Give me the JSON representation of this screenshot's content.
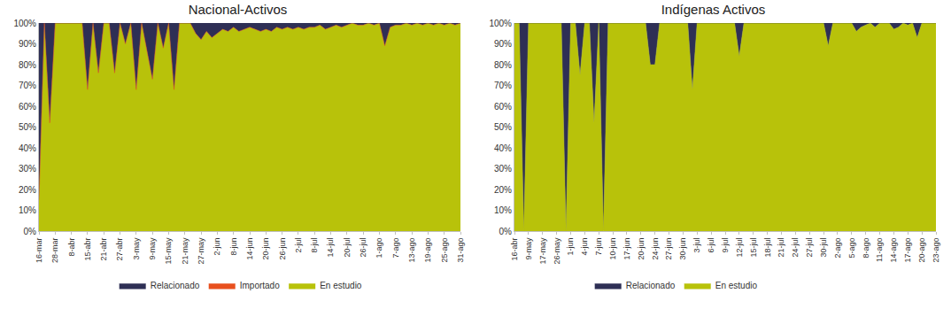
{
  "chart_data": [
    {
      "type": "area",
      "title": "Nacional-Activos",
      "stacked": true,
      "grid": false,
      "legend": "bottom",
      "ylim": [
        0,
        100
      ],
      "yticks": [
        {
          "value": 0,
          "label": "0%"
        },
        {
          "value": 10,
          "label": "10%"
        },
        {
          "value": 20,
          "label": "20%"
        },
        {
          "value": 30,
          "label": "30%"
        },
        {
          "value": 40,
          "label": "40%"
        },
        {
          "value": 50,
          "label": "50%"
        },
        {
          "value": 60,
          "label": "60%"
        },
        {
          "value": 70,
          "label": "70%"
        },
        {
          "value": 80,
          "label": "80%"
        },
        {
          "value": 90,
          "label": "90%"
        },
        {
          "value": 100,
          "label": "100%"
        }
      ],
      "categories": [
        "16-mar",
        null,
        null,
        "28-mar",
        null,
        null,
        "8-abr",
        null,
        null,
        "15-abr",
        null,
        null,
        "21-abr",
        null,
        null,
        "27-abr",
        null,
        null,
        "3-may",
        null,
        null,
        "9-may",
        null,
        null,
        "15-may",
        null,
        null,
        "21-may",
        null,
        null,
        "27-may",
        null,
        null,
        "2-jun",
        null,
        null,
        "8-jun",
        null,
        null,
        "14-jun",
        null,
        null,
        "20-jun",
        null,
        null,
        "26-jun",
        null,
        null,
        "2-jul",
        null,
        null,
        "8-jul",
        null,
        null,
        "14-jul",
        null,
        null,
        "20-jul",
        null,
        null,
        "26-jul",
        null,
        null,
        "1-ago",
        null,
        null,
        "7-ago",
        null,
        null,
        "13-ago",
        null,
        null,
        "19-ago",
        null,
        null,
        "25-ago",
        null,
        null,
        "31-ago"
      ],
      "series": [
        {
          "name": "En estudio",
          "color": "#b8c20a",
          "values": [
            15,
            100,
            52,
            100,
            100,
            100,
            100,
            100,
            100,
            68,
            100,
            76,
            100,
            100,
            76,
            100,
            90,
            100,
            68,
            100,
            86,
            73,
            100,
            88,
            100,
            68,
            100,
            100,
            100,
            95,
            92,
            96,
            93,
            95,
            97,
            96,
            98,
            96,
            97,
            98,
            97,
            96,
            97,
            96,
            98,
            97,
            98,
            97,
            98,
            97,
            98,
            98,
            99,
            97,
            98,
            99,
            98,
            99,
            100,
            99,
            99,
            100,
            99,
            100,
            89,
            98,
            99,
            99,
            100,
            99,
            100,
            99,
            100,
            99,
            100,
            99,
            100,
            99,
            100
          ]
        },
        {
          "name": "Importado",
          "color": "#e8501e",
          "values": [
            0,
            0,
            0,
            0,
            0,
            0,
            0,
            0,
            0,
            0,
            0,
            0,
            0,
            0,
            0,
            0,
            0,
            0,
            0,
            0,
            0,
            0,
            0,
            0,
            0,
            0,
            0,
            0,
            0,
            0,
            0,
            0,
            0,
            0,
            0,
            0,
            0,
            0,
            0,
            0,
            0,
            0,
            0,
            0,
            0,
            0,
            0,
            0,
            0,
            0,
            0,
            0,
            0,
            0,
            0,
            0,
            0,
            0,
            0,
            0,
            0,
            0,
            0,
            0,
            0,
            0,
            0,
            0,
            0,
            0,
            0,
            0,
            0,
            0,
            0,
            0,
            0,
            0,
            0
          ]
        },
        {
          "name": "Relacionado",
          "color": "#2e2f55",
          "values": [
            85,
            0,
            48,
            0,
            0,
            0,
            0,
            0,
            0,
            32,
            0,
            24,
            0,
            0,
            24,
            0,
            10,
            0,
            32,
            0,
            14,
            27,
            0,
            12,
            0,
            32,
            0,
            0,
            0,
            5,
            8,
            4,
            7,
            5,
            3,
            4,
            2,
            4,
            3,
            2,
            3,
            4,
            3,
            4,
            2,
            3,
            2,
            3,
            2,
            3,
            2,
            2,
            1,
            3,
            2,
            1,
            2,
            1,
            0,
            1,
            1,
            0,
            1,
            0,
            11,
            2,
            1,
            1,
            0,
            1,
            0,
            1,
            0,
            1,
            0,
            1,
            0,
            1,
            0
          ]
        }
      ]
    },
    {
      "type": "area",
      "title": "Indígenas Activos",
      "stacked": true,
      "grid": false,
      "legend": "bottom",
      "ylim": [
        0,
        100
      ],
      "yticks": [
        {
          "value": 0,
          "label": "0%"
        },
        {
          "value": 10,
          "label": "10%"
        },
        {
          "value": 20,
          "label": "20%"
        },
        {
          "value": 30,
          "label": "30%"
        },
        {
          "value": 40,
          "label": "40%"
        },
        {
          "value": 50,
          "label": "50%"
        },
        {
          "value": 60,
          "label": "60%"
        },
        {
          "value": 70,
          "label": "70%"
        },
        {
          "value": 80,
          "label": "80%"
        },
        {
          "value": 90,
          "label": "90%"
        },
        {
          "value": 100,
          "label": "100%"
        }
      ],
      "categories": [
        "16-abr",
        null,
        null,
        "9-may",
        null,
        null,
        "17-may",
        null,
        null,
        "26-may",
        null,
        null,
        "1-jun",
        null,
        null,
        "4-jun",
        null,
        null,
        "7-jun",
        null,
        null,
        "10-jun",
        null,
        null,
        "17-jun",
        null,
        null,
        "20-jun",
        null,
        null,
        "24-jun",
        null,
        null,
        "27-jun",
        null,
        null,
        "30-jun",
        null,
        null,
        "3-jul",
        null,
        null,
        "6-jul",
        null,
        null,
        "9-jul",
        null,
        null,
        "12-jul",
        null,
        null,
        "15-jul",
        null,
        null,
        "18-jul",
        null,
        null,
        "21-jul",
        null,
        null,
        "24-jul",
        null,
        null,
        "27-jul",
        null,
        null,
        "30-jul",
        null,
        null,
        "2-ago",
        null,
        null,
        "5-ago",
        null,
        null,
        "8-ago",
        null,
        null,
        "11-ago",
        null,
        null,
        "14-ago",
        null,
        null,
        "17-ago",
        null,
        null,
        "20-ago",
        null,
        null,
        "23-ago"
      ],
      "series": [
        {
          "name": "En estudio",
          "color": "#b8c20a",
          "values": [
            100,
            100,
            0,
            100,
            100,
            100,
            100,
            100,
            100,
            100,
            100,
            0,
            100,
            100,
            75,
            100,
            100,
            52,
            100,
            0,
            100,
            100,
            100,
            100,
            100,
            100,
            100,
            100,
            100,
            80,
            80,
            100,
            100,
            100,
            100,
            100,
            100,
            100,
            68,
            100,
            100,
            100,
            100,
            100,
            100,
            100,
            100,
            100,
            84,
            100,
            100,
            100,
            100,
            100,
            100,
            100,
            100,
            100,
            100,
            100,
            100,
            100,
            100,
            100,
            100,
            100,
            100,
            89,
            100,
            100,
            100,
            100,
            100,
            96,
            98,
            99,
            100,
            98,
            100,
            100,
            100,
            97,
            98,
            100,
            99,
            100,
            93,
            100,
            100,
            100,
            100
          ]
        },
        {
          "name": "Relacionado",
          "color": "#2e2f55",
          "values": [
            0,
            0,
            100,
            0,
            0,
            0,
            0,
            0,
            0,
            0,
            0,
            100,
            0,
            0,
            25,
            0,
            0,
            48,
            0,
            100,
            0,
            0,
            0,
            0,
            0,
            0,
            0,
            0,
            0,
            20,
            20,
            0,
            0,
            0,
            0,
            0,
            0,
            0,
            32,
            0,
            0,
            0,
            0,
            0,
            0,
            0,
            0,
            0,
            16,
            0,
            0,
            0,
            0,
            0,
            0,
            0,
            0,
            0,
            0,
            0,
            0,
            0,
            0,
            0,
            0,
            0,
            0,
            11,
            0,
            0,
            0,
            0,
            0,
            4,
            2,
            1,
            0,
            2,
            0,
            0,
            0,
            3,
            2,
            0,
            1,
            0,
            7,
            0,
            0,
            0,
            0
          ]
        }
      ]
    }
  ]
}
